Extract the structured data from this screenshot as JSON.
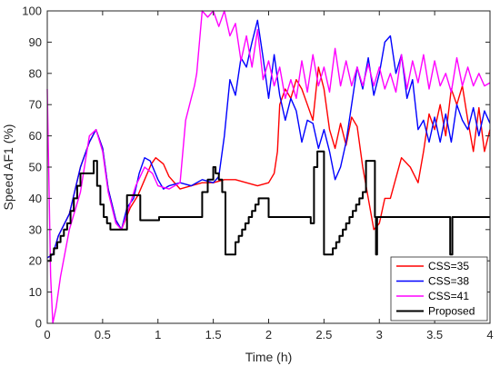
{
  "chart_data": {
    "type": "line",
    "title": "",
    "xlabel": "Time (h)",
    "ylabel": "Speed AF1 (%)",
    "xlim": [
      0,
      4
    ],
    "ylim": [
      0,
      100
    ],
    "xticks": [
      "0",
      "0.5",
      "1",
      "1.5",
      "2",
      "2.5",
      "3",
      "3.5",
      "4"
    ],
    "yticks": [
      "0",
      "10",
      "20",
      "30",
      "40",
      "50",
      "60",
      "70",
      "80",
      "90",
      "100"
    ],
    "grid": false,
    "legend_position": "bottom-right",
    "series": [
      {
        "name": "CSS=35",
        "color": "#ff0000",
        "x": [
          0,
          0.05,
          0.1,
          0.2,
          0.3,
          0.38,
          0.44,
          0.5,
          0.55,
          0.62,
          0.67,
          0.75,
          0.82,
          0.88,
          0.94,
          0.98,
          1.05,
          1.1,
          1.2,
          1.3,
          1.4,
          1.5,
          1.6,
          1.7,
          1.8,
          1.9,
          2.0,
          2.05,
          2.08,
          2.1,
          2.15,
          2.2,
          2.25,
          2.3,
          2.35,
          2.4,
          2.45,
          2.5,
          2.55,
          2.6,
          2.65,
          2.7,
          2.75,
          2.8,
          2.85,
          2.9,
          2.95,
          3.0,
          3.05,
          3.1,
          3.2,
          3.28,
          3.35,
          3.4,
          3.45,
          3.5,
          3.55,
          3.6,
          3.65,
          3.7,
          3.75,
          3.8,
          3.85,
          3.9,
          3.95,
          4.0
        ],
        "y": [
          21,
          22,
          28,
          35,
          50,
          58,
          62,
          56,
          43,
          33,
          30,
          37,
          41,
          46,
          51,
          53,
          51,
          47,
          43,
          44,
          45,
          45,
          46,
          46,
          45,
          44,
          45,
          48,
          55,
          70,
          75,
          72,
          78,
          75,
          70,
          65,
          82,
          75,
          62,
          56,
          64,
          57,
          66,
          63,
          50,
          40,
          30,
          32,
          40,
          40,
          53,
          50,
          45,
          55,
          67,
          62,
          70,
          60,
          75,
          70,
          76,
          65,
          55,
          69,
          55,
          62
        ]
      },
      {
        "name": "CSS=38",
        "color": "#0000ff",
        "x": [
          0,
          0.05,
          0.1,
          0.2,
          0.3,
          0.38,
          0.44,
          0.5,
          0.55,
          0.62,
          0.67,
          0.72,
          0.78,
          0.83,
          0.88,
          0.93,
          1.0,
          1.05,
          1.1,
          1.2,
          1.3,
          1.4,
          1.5,
          1.55,
          1.6,
          1.65,
          1.7,
          1.75,
          1.8,
          1.85,
          1.9,
          1.95,
          2.0,
          2.05,
          2.1,
          2.15,
          2.2,
          2.25,
          2.3,
          2.35,
          2.4,
          2.45,
          2.5,
          2.55,
          2.6,
          2.65,
          2.7,
          2.75,
          2.8,
          2.85,
          2.9,
          2.95,
          3.0,
          3.05,
          3.1,
          3.15,
          3.2,
          3.25,
          3.3,
          3.35,
          3.4,
          3.45,
          3.5,
          3.55,
          3.6,
          3.65,
          3.7,
          3.75,
          3.8,
          3.85,
          3.9,
          3.95,
          4.0
        ],
        "y": [
          21,
          22,
          28,
          35,
          50,
          58,
          62,
          56,
          43,
          33,
          30,
          37,
          40,
          48,
          53,
          52,
          46,
          43,
          44,
          45,
          44,
          46,
          45,
          47,
          60,
          78,
          73,
          85,
          82,
          90,
          97,
          85,
          72,
          86,
          73,
          65,
          72,
          68,
          58,
          65,
          64,
          56,
          62,
          55,
          46,
          50,
          58,
          70,
          82,
          75,
          85,
          73,
          80,
          90,
          92,
          80,
          86,
          72,
          78,
          62,
          65,
          58,
          66,
          58,
          67,
          58,
          70,
          65,
          62,
          69,
          60,
          68,
          64
        ]
      },
      {
        "name": "CSS=41",
        "color": "#ff00ff",
        "x": [
          0,
          0.03,
          0.05,
          0.08,
          0.12,
          0.2,
          0.3,
          0.38,
          0.44,
          0.5,
          0.55,
          0.62,
          0.67,
          0.72,
          0.8,
          0.88,
          0.95,
          1.0,
          1.1,
          1.2,
          1.25,
          1.3,
          1.33,
          1.35,
          1.4,
          1.45,
          1.5,
          1.55,
          1.6,
          1.65,
          1.7,
          1.75,
          1.8,
          1.85,
          1.9,
          1.95,
          2.0,
          2.05,
          2.1,
          2.15,
          2.2,
          2.25,
          2.3,
          2.35,
          2.4,
          2.45,
          2.5,
          2.55,
          2.6,
          2.65,
          2.7,
          2.75,
          2.8,
          2.85,
          2.9,
          2.95,
          3.0,
          3.05,
          3.1,
          3.15,
          3.2,
          3.25,
          3.3,
          3.35,
          3.4,
          3.45,
          3.5,
          3.55,
          3.6,
          3.65,
          3.7,
          3.75,
          3.8,
          3.85,
          3.9,
          3.95,
          4.0
        ],
        "y": [
          75,
          15,
          0,
          5,
          15,
          30,
          42,
          60,
          62,
          55,
          42,
          32,
          30,
          35,
          44,
          50,
          48,
          44,
          43,
          45,
          65,
          72,
          76,
          80,
          100,
          98,
          100,
          95,
          100,
          92,
          96,
          84,
          92,
          82,
          94,
          78,
          84,
          76,
          82,
          72,
          78,
          72,
          84,
          74,
          86,
          76,
          82,
          74,
          88,
          76,
          84,
          76,
          82,
          76,
          83,
          76,
          82,
          75,
          80,
          74,
          86,
          75,
          84,
          77,
          86,
          75,
          84,
          76,
          80,
          74,
          85,
          76,
          82,
          76,
          80,
          76,
          77
        ]
      },
      {
        "name": "Proposed",
        "color": "#000000",
        "x": [
          0,
          0.03,
          0.06,
          0.09,
          0.12,
          0.15,
          0.18,
          0.21,
          0.24,
          0.27,
          0.3,
          0.42,
          0.45,
          0.48,
          0.51,
          0.54,
          0.57,
          0.6,
          0.63,
          0.72,
          0.75,
          0.84,
          0.87,
          0.98,
          1.01,
          1.1,
          1.2,
          1.3,
          1.35,
          1.4,
          1.45,
          1.48,
          1.5,
          1.52,
          1.55,
          1.58,
          1.61,
          1.64,
          1.67,
          1.7,
          1.73,
          1.76,
          1.79,
          1.82,
          1.85,
          1.88,
          1.91,
          2.0,
          2.1,
          2.2,
          2.3,
          2.35,
          2.38,
          2.41,
          2.44,
          2.47,
          2.5,
          2.52,
          2.55,
          2.58,
          2.61,
          2.64,
          2.67,
          2.7,
          2.73,
          2.76,
          2.79,
          2.82,
          2.85,
          2.88,
          2.94,
          2.96,
          2.97,
          2.98,
          3.0,
          3.1,
          3.3,
          3.5,
          3.62,
          3.64,
          3.66,
          3.8,
          4.0
        ],
        "y": [
          20,
          22,
          24,
          26,
          28,
          30,
          32,
          36,
          40,
          44,
          48,
          52,
          44,
          38,
          34,
          32,
          30,
          30,
          30,
          41,
          41,
          33,
          33,
          33,
          34,
          34,
          34,
          34,
          34,
          42,
          46,
          46,
          50,
          48,
          46,
          42,
          22,
          22,
          22,
          26,
          28,
          30,
          32,
          34,
          36,
          38,
          40,
          34,
          34,
          34,
          34,
          34,
          32,
          50,
          55,
          55,
          22,
          22,
          22,
          24,
          26,
          28,
          30,
          32,
          34,
          36,
          38,
          40,
          42,
          52,
          52,
          34,
          22,
          34,
          34,
          34,
          34,
          34,
          34,
          22,
          34,
          34,
          34
        ]
      }
    ]
  }
}
